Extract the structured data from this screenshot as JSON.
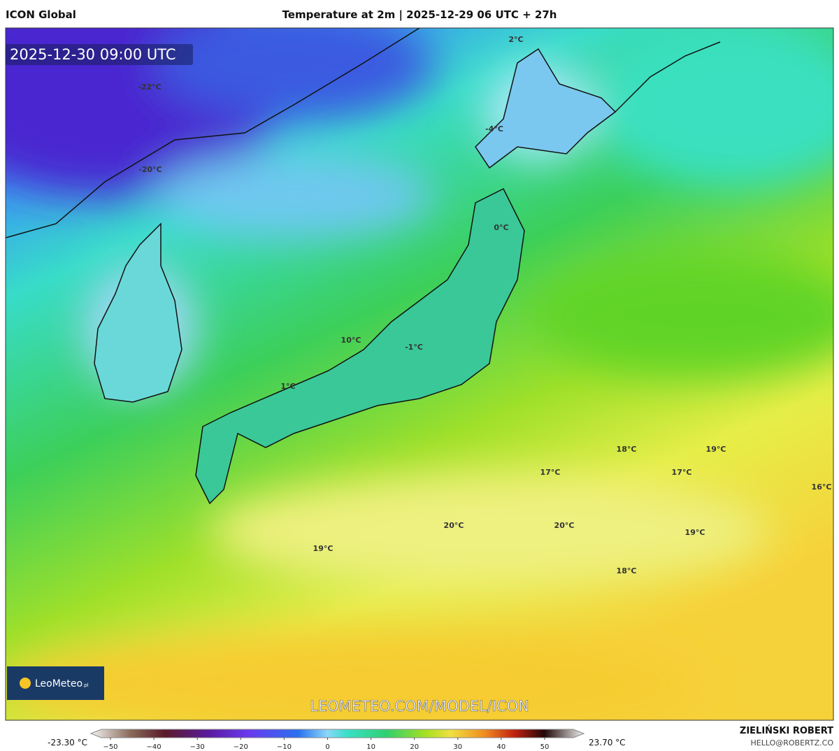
{
  "header": {
    "model": "ICON Global",
    "title": "Temperature at 2m | 2025-12-29 06 UTC + 27h"
  },
  "valid_time": "2025-12-30 09:00 UTC",
  "logo": {
    "name": "LeoMeteo",
    "suffix": ".pl"
  },
  "watermark": "LEOMETEO.COM/MODEL/ICON",
  "map": {
    "labels": [
      "-22°C",
      "-20°C",
      "2°C",
      "-4°C",
      "0°C",
      "10°C",
      "-1°C",
      "1°C",
      "18°C",
      "19°C",
      "17°C",
      "17°C",
      "16°C",
      "20°C",
      "20°C",
      "19°C",
      "19°C",
      "18°C"
    ]
  },
  "colorbar": {
    "min_label": "-23.30 °C",
    "max_label": "23.70 °C",
    "ticks": [
      {
        "value": -50,
        "label": "−50"
      },
      {
        "value": -40,
        "label": "−40"
      },
      {
        "value": -30,
        "label": "−30"
      },
      {
        "value": -20,
        "label": "−20"
      },
      {
        "value": -10,
        "label": "−10"
      },
      0,
      10,
      20,
      30,
      40,
      50
    ]
  },
  "footer": {
    "author": "ZIELIŃSKI ROBERT",
    "email": "HELLO@ROBERTZ.CO"
  }
}
